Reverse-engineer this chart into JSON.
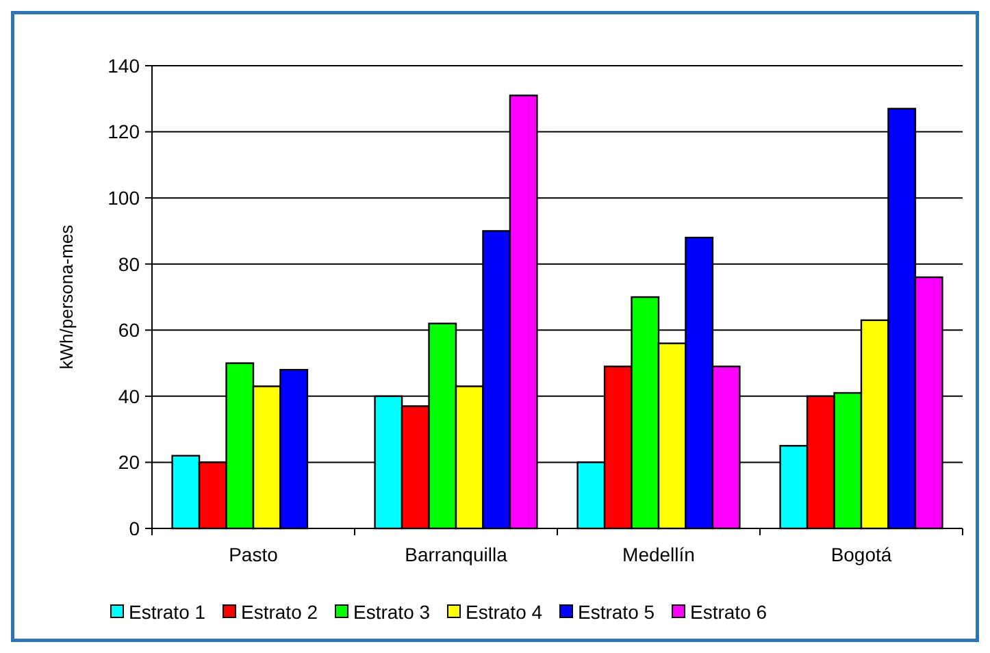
{
  "chart_data": {
    "type": "bar",
    "ylabel": "kWh/persona-mes",
    "categories": [
      "Pasto",
      "Barranquilla",
      "Medellín",
      "Bogotá"
    ],
    "series": [
      {
        "name": "Estrato 1",
        "color": "#00ffff",
        "values": [
          22,
          40,
          20,
          25
        ]
      },
      {
        "name": "Estrato 2",
        "color": "#ff0000",
        "values": [
          20,
          37,
          49,
          40
        ]
      },
      {
        "name": "Estrato 3",
        "color": "#00ff00",
        "values": [
          50,
          62,
          70,
          41
        ]
      },
      {
        "name": "Estrato 4",
        "color": "#ffff00",
        "values": [
          43,
          43,
          56,
          63
        ]
      },
      {
        "name": "Estrato 5",
        "color": "#0000ff",
        "values": [
          48,
          90,
          88,
          127
        ]
      },
      {
        "name": "Estrato 6",
        "color": "#ff00ff",
        "values": [
          null,
          131,
          49,
          76
        ]
      }
    ],
    "ylim": [
      0,
      140
    ],
    "yticks": [
      0,
      20,
      40,
      60,
      80,
      100,
      120,
      140
    ],
    "grid": "y",
    "legend": "bottom"
  }
}
